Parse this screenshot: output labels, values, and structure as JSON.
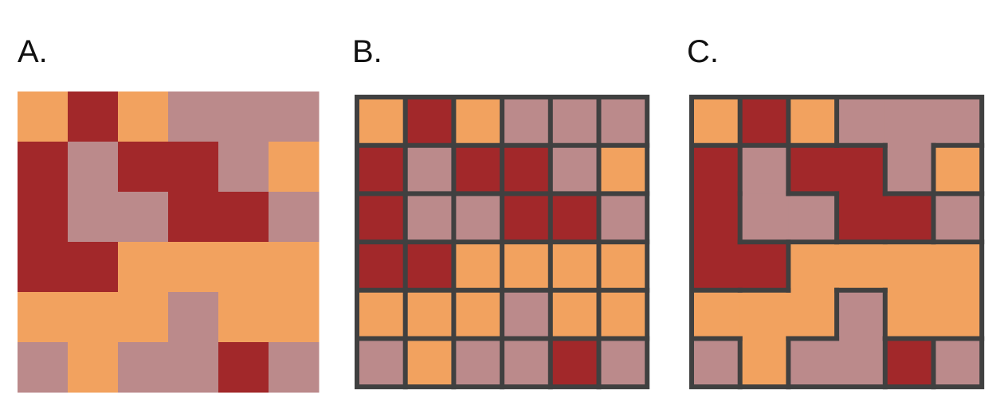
{
  "colors": {
    "orange": "#f2a25f",
    "red": "#a2282a",
    "mauve": "#bb8a8b",
    "border": "#404040",
    "background": "#ffffff"
  },
  "grid": [
    [
      "orange",
      "red",
      "orange",
      "mauve",
      "mauve",
      "mauve"
    ],
    [
      "red",
      "mauve",
      "red",
      "red",
      "mauve",
      "orange"
    ],
    [
      "red",
      "mauve",
      "mauve",
      "red",
      "red",
      "mauve"
    ],
    [
      "red",
      "red",
      "orange",
      "orange",
      "orange",
      "orange"
    ],
    [
      "orange",
      "orange",
      "orange",
      "mauve",
      "orange",
      "orange"
    ],
    [
      "mauve",
      "orange",
      "mauve",
      "mauve",
      "red",
      "mauve"
    ]
  ],
  "panels": [
    {
      "label": "A.",
      "style": "no-borders"
    },
    {
      "label": "B.",
      "style": "cell-borders"
    },
    {
      "label": "C.",
      "style": "region-borders"
    }
  ]
}
